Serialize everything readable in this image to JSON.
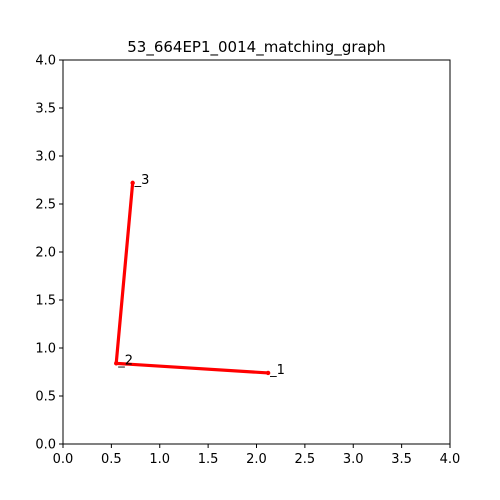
{
  "chart_data": {
    "type": "line",
    "title": "53_664EP1_0014_matching_graph",
    "xlabel": "",
    "ylabel": "",
    "xlim": [
      0.0,
      4.0
    ],
    "ylim": [
      0.0,
      4.0
    ],
    "grid": false,
    "x_ticks": [
      "0.0",
      "0.5",
      "1.0",
      "1.5",
      "2.0",
      "2.5",
      "3.0",
      "3.5",
      "4.0"
    ],
    "y_ticks": [
      "0.0",
      "0.5",
      "1.0",
      "1.5",
      "2.0",
      "2.5",
      "3.0",
      "3.5",
      "4.0"
    ],
    "line_color": "#ff0000",
    "nodes": [
      {
        "label": "_1",
        "x": 2.12,
        "y": 0.74
      },
      {
        "label": "_2",
        "x": 0.55,
        "y": 0.84
      },
      {
        "label": "_3",
        "x": 0.72,
        "y": 2.72
      }
    ],
    "edges": [
      {
        "from": 0,
        "to": 1
      },
      {
        "from": 1,
        "to": 2
      }
    ]
  }
}
